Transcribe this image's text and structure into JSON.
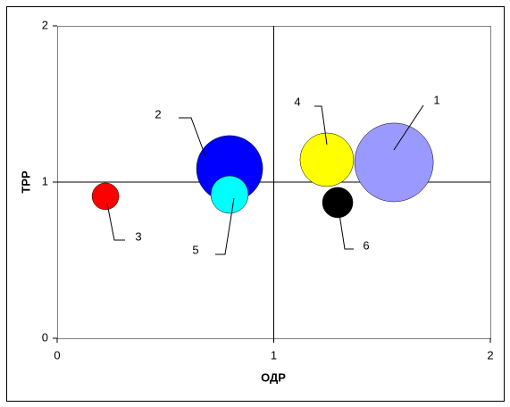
{
  "chart_data": {
    "type": "bubble",
    "x_label": "ОДР",
    "y_label": "ТРР",
    "xlim": [
      0,
      2
    ],
    "ylim": [
      0,
      2
    ],
    "xticks": [
      0,
      1,
      2
    ],
    "yticks": [
      0,
      1,
      2
    ],
    "axis_cross": [
      1,
      1
    ],
    "points": [
      {
        "label": "1",
        "x": 1.555,
        "y": 1.126,
        "size": 19.4,
        "color": "#9999ff"
      },
      {
        "label": "2",
        "x": 0.796,
        "y": 1.086,
        "size": 13.7,
        "color": "#0000ff"
      },
      {
        "label": "3",
        "x": 0.223,
        "y": 0.909,
        "size": 2.25,
        "color": "#ff0000"
      },
      {
        "label": "4",
        "x": 1.245,
        "y": 1.143,
        "size": 9,
        "color": "#ffff00"
      },
      {
        "label": "5",
        "x": 0.796,
        "y": 0.92,
        "size": 4.4,
        "color": "#00ffff"
      },
      {
        "label": "6",
        "x": 1.295,
        "y": 0.869,
        "size": 2.9,
        "color": "#000000"
      }
    ]
  }
}
